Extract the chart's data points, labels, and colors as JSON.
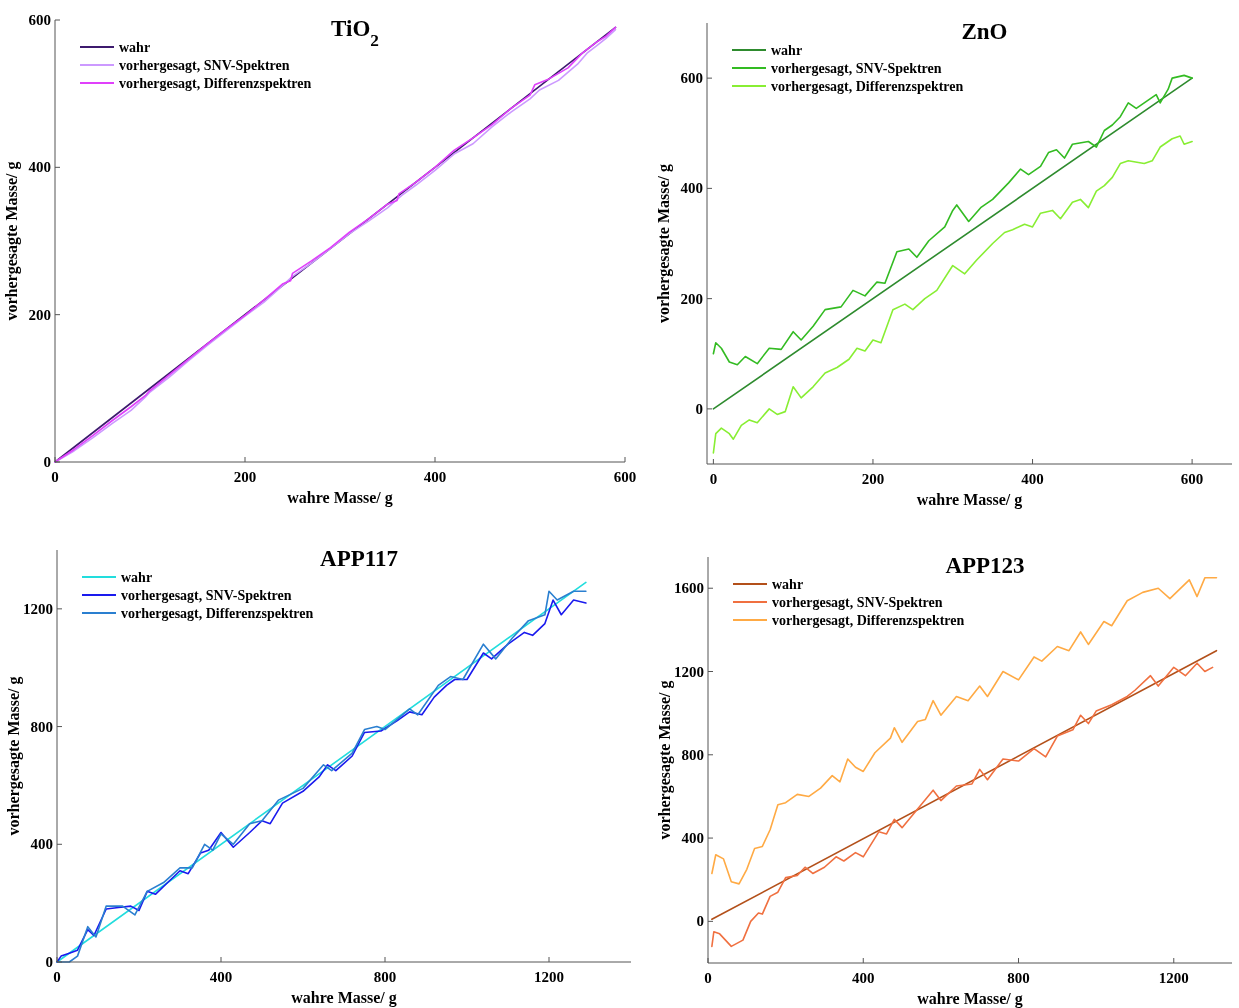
{
  "chart_data": [
    {
      "type": "line",
      "title": "TiO$_{2}$",
      "xlabel": "wahre Masse/ g",
      "ylabel": "vorhergesagte Masse/ g",
      "xlim": [
        0,
        600
      ],
      "ylim": [
        0,
        600
      ],
      "xticks": [
        0,
        200,
        400,
        600
      ],
      "yticks": [
        0,
        200,
        400,
        600
      ],
      "grid": false,
      "legend": "top left",
      "series": [
        {
          "name": "wahr",
          "color": "#3d1a6e",
          "x": [
            0,
            590
          ],
          "values": [
            0,
            590
          ]
        },
        {
          "name": "vorhergesagt, SNV-Spektren",
          "color": "#cc99ff",
          "x": [
            0,
            20,
            40,
            60,
            80,
            95,
            100,
            120,
            140,
            160,
            180,
            200,
            220,
            240,
            250,
            270,
            290,
            310,
            330,
            350,
            365,
            380,
            400,
            420,
            440,
            460,
            480,
            500,
            510,
            530,
            550,
            560,
            570,
            580,
            590
          ],
          "values": [
            0,
            15,
            33,
            52,
            70,
            88,
            95,
            115,
            137,
            158,
            178,
            198,
            217,
            240,
            252,
            270,
            290,
            310,
            327,
            345,
            362,
            376,
            396,
            418,
            432,
            455,
            475,
            493,
            505,
            518,
            540,
            555,
            565,
            575,
            587
          ]
        },
        {
          "name": "vorhergesagt, Differenzspektren",
          "color": "#e040fb",
          "x": [
            0,
            20,
            40,
            60,
            80,
            95,
            100,
            120,
            140,
            160,
            180,
            200,
            220,
            240,
            248,
            250,
            270,
            290,
            310,
            330,
            350,
            360,
            362,
            380,
            400,
            420,
            440,
            460,
            480,
            500,
            505,
            520,
            540,
            555,
            570,
            580,
            590
          ],
          "values": [
            0,
            17,
            36,
            56,
            75,
            90,
            97,
            118,
            139,
            160,
            180,
            199,
            220,
            242,
            246,
            256,
            273,
            291,
            312,
            330,
            350,
            355,
            364,
            380,
            400,
            423,
            440,
            458,
            480,
            498,
            512,
            520,
            535,
            555,
            570,
            578,
            590
          ]
        }
      ]
    },
    {
      "type": "line",
      "title": "ZnO",
      "xlabel": "wahre Masse/ g",
      "ylabel": "vorhergesagte Masse/ g",
      "xlim": [
        -8,
        650
      ],
      "ylim": [
        -100,
        700
      ],
      "xticks": [
        0,
        200,
        400,
        600
      ],
      "yticks": [
        0,
        200,
        400,
        600
      ],
      "grid": false,
      "legend": "top left",
      "series": [
        {
          "name": "wahr",
          "color": "#2e8b2e",
          "x": [
            0,
            600
          ],
          "values": [
            0,
            600
          ]
        },
        {
          "name": "vorhergesagt, SNV-Spektren",
          "color": "#33bb22",
          "x": [
            0,
            3,
            10,
            20,
            30,
            40,
            55,
            70,
            85,
            100,
            110,
            125,
            140,
            160,
            175,
            190,
            205,
            215,
            230,
            245,
            255,
            270,
            290,
            300,
            305,
            320,
            335,
            350,
            370,
            385,
            395,
            410,
            420,
            430,
            440,
            450,
            470,
            480,
            490,
            500,
            510,
            520,
            530,
            545,
            555,
            560,
            570,
            575,
            590,
            600
          ],
          "values": [
            100,
            120,
            110,
            85,
            80,
            95,
            82,
            110,
            108,
            140,
            125,
            150,
            180,
            185,
            215,
            205,
            230,
            228,
            285,
            290,
            275,
            305,
            330,
            360,
            370,
            340,
            365,
            380,
            410,
            435,
            425,
            440,
            465,
            470,
            455,
            480,
            485,
            475,
            505,
            515,
            530,
            555,
            545,
            560,
            570,
            555,
            580,
            600,
            605,
            600
          ]
        },
        {
          "name": "vorhergesagt, Differenzspektren",
          "color": "#88ee33",
          "x": [
            0,
            3,
            10,
            20,
            25,
            35,
            45,
            55,
            70,
            80,
            90,
            100,
            110,
            125,
            140,
            155,
            170,
            180,
            190,
            200,
            210,
            225,
            240,
            250,
            265,
            280,
            300,
            315,
            330,
            350,
            365,
            375,
            390,
            400,
            410,
            425,
            435,
            450,
            460,
            470,
            480,
            490,
            500,
            510,
            520,
            540,
            550,
            560,
            575,
            585,
            590,
            600
          ],
          "values": [
            -80,
            -45,
            -35,
            -45,
            -55,
            -30,
            -20,
            -25,
            0,
            -10,
            -5,
            40,
            20,
            40,
            65,
            75,
            90,
            110,
            105,
            125,
            120,
            180,
            190,
            180,
            200,
            215,
            260,
            245,
            270,
            300,
            320,
            325,
            335,
            330,
            355,
            360,
            345,
            375,
            380,
            365,
            395,
            405,
            420,
            445,
            450,
            445,
            450,
            475,
            490,
            495,
            480,
            485
          ]
        }
      ]
    },
    {
      "type": "line",
      "title": "APP117",
      "xlabel": "wahre Masse/ g",
      "ylabel": "vorhergesagte Masse/ g",
      "xlim": [
        0,
        1400
      ],
      "ylim": [
        0,
        1400
      ],
      "xticks": [
        0,
        400,
        800,
        1200
      ],
      "yticks": [
        0,
        400,
        800,
        1200
      ],
      "grid": false,
      "legend": "top left",
      "series": [
        {
          "name": "wahr",
          "color": "#22dddd",
          "x": [
            0,
            1290
          ],
          "values": [
            0,
            1290
          ]
        },
        {
          "name": "vorhergesagt, SNV-Spektren",
          "color": "#1a1aee",
          "x": [
            0,
            10,
            30,
            50,
            75,
            90,
            120,
            150,
            180,
            200,
            220,
            240,
            270,
            300,
            320,
            350,
            370,
            400,
            430,
            470,
            500,
            520,
            550,
            600,
            640,
            660,
            680,
            720,
            750,
            790,
            830,
            860,
            890,
            920,
            950,
            970,
            1000,
            1040,
            1060,
            1100,
            1140,
            1160,
            1190,
            1210,
            1230,
            1260,
            1290
          ],
          "values": [
            0,
            20,
            30,
            40,
            110,
            90,
            180,
            185,
            190,
            175,
            240,
            230,
            270,
            310,
            300,
            370,
            380,
            440,
            390,
            440,
            480,
            470,
            540,
            580,
            630,
            670,
            650,
            700,
            780,
            785,
            820,
            850,
            840,
            900,
            940,
            960,
            960,
            1050,
            1030,
            1080,
            1120,
            1110,
            1150,
            1230,
            1180,
            1230,
            1220
          ]
        },
        {
          "name": "vorhergesagt, Differenzspektren",
          "color": "#2a7fd0",
          "x": [
            0,
            30,
            50,
            75,
            95,
            120,
            160,
            190,
            220,
            260,
            300,
            330,
            360,
            380,
            400,
            430,
            470,
            500,
            540,
            600,
            650,
            670,
            720,
            750,
            780,
            800,
            860,
            880,
            930,
            960,
            990,
            1040,
            1070,
            1110,
            1150,
            1190,
            1200,
            1220,
            1260,
            1290
          ],
          "values": [
            0,
            0,
            20,
            120,
            85,
            190,
            190,
            160,
            240,
            270,
            320,
            320,
            400,
            380,
            435,
            400,
            470,
            480,
            550,
            590,
            670,
            650,
            710,
            790,
            800,
            790,
            860,
            840,
            940,
            970,
            960,
            1080,
            1030,
            1100,
            1160,
            1180,
            1260,
            1230,
            1260,
            1260
          ]
        }
      ]
    },
    {
      "type": "line",
      "title": "APP123",
      "xlabel": "wahre Masse/ g",
      "ylabel": "vorhergesagte Masse/ g",
      "xlim": [
        0,
        1350
      ],
      "ylim": [
        -200,
        1750
      ],
      "xticks": [
        0,
        400,
        800,
        1200
      ],
      "yticks": [
        0,
        400,
        800,
        1200,
        1600
      ],
      "grid": false,
      "legend": "top left",
      "series": [
        {
          "name": "wahr",
          "color": "#b3501a",
          "x": [
            10,
            1310
          ],
          "values": [
            10,
            1300
          ]
        },
        {
          "name": "vorhergesagt, SNV-Spektren",
          "color": "#f07040",
          "x": [
            10,
            15,
            30,
            60,
            90,
            110,
            130,
            140,
            160,
            180,
            200,
            230,
            250,
            270,
            300,
            330,
            350,
            380,
            400,
            420,
            440,
            460,
            480,
            500,
            540,
            580,
            600,
            640,
            680,
            700,
            720,
            760,
            800,
            840,
            870,
            900,
            940,
            960,
            980,
            1000,
            1040,
            1080,
            1100,
            1140,
            1160,
            1200,
            1230,
            1260,
            1280,
            1300
          ],
          "values": [
            -120,
            -50,
            -60,
            -120,
            -90,
            0,
            40,
            35,
            120,
            140,
            210,
            220,
            260,
            230,
            260,
            310,
            290,
            330,
            310,
            370,
            430,
            420,
            490,
            450,
            540,
            630,
            580,
            650,
            660,
            730,
            680,
            780,
            770,
            830,
            790,
            890,
            920,
            990,
            950,
            1010,
            1040,
            1080,
            1110,
            1180,
            1130,
            1220,
            1180,
            1240,
            1200,
            1220
          ]
        },
        {
          "name": "vorhergesagt, Differenzspektren",
          "color": "#ffaa44",
          "x": [
            10,
            20,
            40,
            60,
            80,
            100,
            120,
            140,
            160,
            180,
            200,
            230,
            260,
            290,
            320,
            340,
            360,
            380,
            400,
            430,
            470,
            480,
            500,
            540,
            560,
            580,
            600,
            640,
            670,
            700,
            720,
            760,
            800,
            840,
            860,
            900,
            930,
            960,
            980,
            1020,
            1040,
            1080,
            1120,
            1160,
            1190,
            1240,
            1260,
            1280,
            1310
          ],
          "values": [
            230,
            320,
            300,
            190,
            180,
            250,
            350,
            360,
            440,
            560,
            570,
            610,
            600,
            640,
            700,
            670,
            780,
            740,
            720,
            810,
            880,
            930,
            860,
            960,
            970,
            1060,
            990,
            1080,
            1060,
            1130,
            1080,
            1200,
            1160,
            1270,
            1250,
            1320,
            1300,
            1390,
            1330,
            1440,
            1420,
            1540,
            1580,
            1600,
            1550,
            1640,
            1560,
            1650,
            1650
          ]
        }
      ]
    }
  ]
}
